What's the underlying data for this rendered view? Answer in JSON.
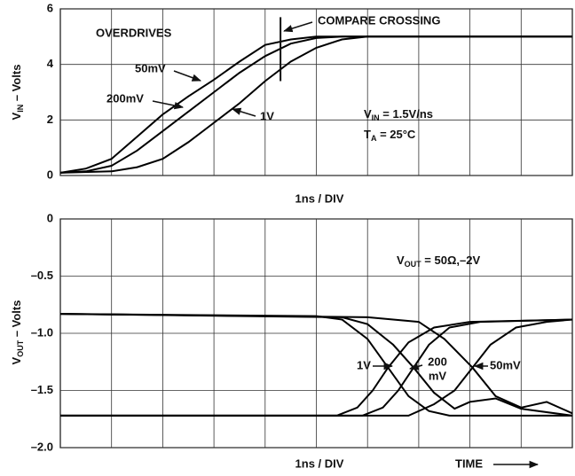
{
  "chart_data": [
    {
      "type": "line",
      "xlim": [
        0,
        10
      ],
      "xgrid": [
        1,
        2,
        3,
        4,
        5,
        6,
        7,
        8,
        9
      ],
      "ylim": [
        0,
        6
      ],
      "yticks": [
        0,
        2,
        4,
        6
      ],
      "grid": true,
      "xlabel": "1ns / DIV",
      "ylabel": [
        "V",
        "IN",
        " – Volts"
      ],
      "series": [
        {
          "name": "50mV",
          "color": "#000000",
          "x": [
            0,
            0.5,
            1,
            1.5,
            2,
            2.5,
            3,
            3.5,
            4,
            4.5,
            5,
            5.5,
            10
          ],
          "values": [
            0.1,
            0.25,
            0.6,
            1.4,
            2.2,
            2.85,
            3.45,
            4.1,
            4.7,
            4.9,
            5.0,
            5.0,
            5.0
          ]
        },
        {
          "name": "200mV",
          "color": "#000000",
          "x": [
            0,
            0.5,
            1,
            1.5,
            2,
            2.5,
            3,
            3.5,
            4,
            4.5,
            5,
            5.5,
            10
          ],
          "values": [
            0.1,
            0.15,
            0.35,
            0.9,
            1.6,
            2.3,
            3.0,
            3.7,
            4.3,
            4.75,
            4.95,
            5.0,
            5.0
          ]
        },
        {
          "name": "1V",
          "color": "#000000",
          "x": [
            0,
            1,
            1.5,
            2,
            2.5,
            3,
            3.5,
            4,
            4.5,
            5,
            5.5,
            6,
            10
          ],
          "values": [
            0.1,
            0.15,
            0.3,
            0.6,
            1.2,
            1.9,
            2.6,
            3.4,
            4.1,
            4.6,
            4.9,
            5.0,
            5.0
          ]
        }
      ],
      "compare_crossing": {
        "label": "COMPARE CROSSING",
        "x": 4.3,
        "y": [
          3.4,
          5.7
        ]
      },
      "annotations": [
        [
          "OVERDRIVES"
        ],
        [
          "V",
          "IN",
          " = 1.5V/ns"
        ],
        [
          "T",
          "A",
          " = 25°C"
        ]
      ]
    },
    {
      "type": "line",
      "xlim": [
        0,
        10
      ],
      "xgrid": [
        1,
        2,
        3,
        4,
        5,
        6,
        7,
        8,
        9
      ],
      "ylim": [
        -2.0,
        0
      ],
      "yticks": [
        0,
        {
          "value": -0.5,
          "label": "–0.5"
        },
        {
          "value": -1.0,
          "label": "–1.0"
        },
        {
          "value": -1.5,
          "label": "–1.5"
        },
        {
          "value": -2.0,
          "label": "–2.0"
        }
      ],
      "grid": true,
      "xlabel": "1ns / DIV",
      "time_label": "TIME",
      "ylabel": [
        "V",
        "OUT",
        " – Volts"
      ],
      "series": [
        {
          "color": "#000000",
          "x": [
            0,
            5,
            5.5,
            6,
            6.4,
            6.8,
            7.2,
            7.6,
            10
          ],
          "values": [
            -0.83,
            -0.85,
            -0.88,
            -1.05,
            -1.3,
            -1.55,
            -1.68,
            -1.72,
            -1.72
          ]
        },
        {
          "color": "#000000",
          "x": [
            0,
            5.4,
            5.8,
            6.1,
            6.4,
            6.8,
            7.3,
            8,
            10
          ],
          "values": [
            -1.72,
            -1.72,
            -1.65,
            -1.5,
            -1.3,
            -1.08,
            -0.95,
            -0.9,
            -0.88
          ]
        },
        {
          "color": "#000000",
          "x": [
            0,
            5.5,
            6,
            6.5,
            6.9,
            7.3,
            7.7,
            8,
            8.5,
            9,
            10
          ],
          "values": [
            -0.83,
            -0.86,
            -0.92,
            -1.1,
            -1.3,
            -1.52,
            -1.66,
            -1.6,
            -1.57,
            -1.66,
            -1.72
          ]
        },
        {
          "color": "#000000",
          "x": [
            0,
            5.9,
            6.3,
            6.6,
            6.9,
            7.2,
            7.6,
            8.2,
            10
          ],
          "values": [
            -1.72,
            -1.72,
            -1.65,
            -1.5,
            -1.3,
            -1.1,
            -0.95,
            -0.9,
            -0.88
          ]
        },
        {
          "color": "#000000",
          "x": [
            0,
            6,
            7,
            7.5,
            8.05,
            8.5,
            9,
            9.5,
            10
          ],
          "values": [
            -0.83,
            -0.86,
            -0.9,
            -1.05,
            -1.3,
            -1.55,
            -1.65,
            -1.6,
            -1.7
          ]
        },
        {
          "color": "#000000",
          "x": [
            0,
            6.8,
            7.3,
            7.7,
            8.05,
            8.4,
            8.9,
            9.5,
            10
          ],
          "values": [
            -1.72,
            -1.72,
            -1.62,
            -1.5,
            -1.3,
            -1.1,
            -0.95,
            -0.9,
            -0.88
          ]
        }
      ],
      "annotations": [
        [
          "V",
          "OUT",
          " = 50Ω,–2V"
        ],
        [
          "1V"
        ],
        [
          "200",
          "mV"
        ],
        [
          "50mV"
        ]
      ]
    }
  ]
}
